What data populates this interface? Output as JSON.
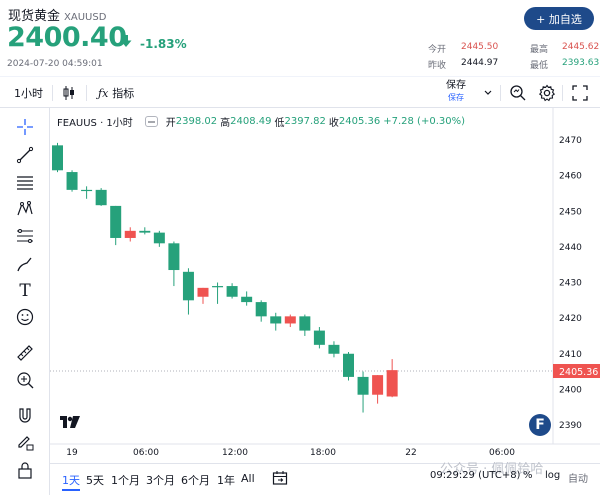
{
  "header": {
    "name": "现货黄金",
    "symbol": "XAUUSD",
    "add_button": "+ 加自选",
    "price": "2400.40",
    "change_pct": "-1.83%",
    "datetime": "2024-07-20 04:59:01",
    "stats": {
      "open_label": "今开",
      "open": "2445.50",
      "high_label": "最高",
      "high": "2445.62",
      "prev_label": "昨收",
      "prev": "2444.97",
      "low_label": "最低",
      "low": "2393.63"
    }
  },
  "toolbar": {
    "interval": "1小时",
    "indicators": "指标",
    "save": "保存",
    "save_sub": "保存"
  },
  "legend": {
    "symbol": "FEAUUS · 1小时",
    "open_k": "开",
    "open_v": "2398.02",
    "high_k": "高",
    "high_v": "2408.49",
    "low_k": "低",
    "low_v": "2397.82",
    "close_k": "收",
    "close_v": "2405.36",
    "chg_v": "+7.28 (+0.30%)"
  },
  "colors": {
    "up": "#ef5350",
    "down": "#26a17b",
    "accent": "#2962ff",
    "brand": "#1e4a8a"
  },
  "bottom": {
    "ranges": [
      "1天",
      "5天",
      "1个月",
      "3个月",
      "6个月",
      "1年",
      "All"
    ],
    "active_range": "1天",
    "timezone": "09:29:29 (UTC+8)",
    "pct": "%",
    "log": "log",
    "auto": "自动"
  },
  "watermark": "公众号 · 佩佩铪哈",
  "chart_data": {
    "type": "candlestick",
    "last_price_label": "2405.36",
    "ylim": [
      2385,
      2475
    ],
    "y_ticks": [
      2390,
      2400,
      2410,
      2420,
      2430,
      2440,
      2450,
      2460,
      2470
    ],
    "x_ticks": [
      "19",
      "06:00",
      "12:00",
      "18:00",
      "22",
      "06:00"
    ],
    "candles": [
      {
        "o": 2468.5,
        "h": 2469.2,
        "l": 2461.0,
        "c": 2461.5
      },
      {
        "o": 2461.0,
        "h": 2461.5,
        "l": 2455.5,
        "c": 2456.0
      },
      {
        "o": 2456.0,
        "h": 2457.0,
        "l": 2453.5,
        "c": 2456.0
      },
      {
        "o": 2456.0,
        "h": 2456.5,
        "l": 2451.5,
        "c": 2451.7
      },
      {
        "o": 2451.5,
        "h": 2451.5,
        "l": 2440.5,
        "c": 2442.5
      },
      {
        "o": 2442.5,
        "h": 2445.5,
        "l": 2441.5,
        "c": 2444.5
      },
      {
        "o": 2444.5,
        "h": 2445.5,
        "l": 2443.5,
        "c": 2444.0
      },
      {
        "o": 2444.0,
        "h": 2444.5,
        "l": 2440.0,
        "c": 2441.0
      },
      {
        "o": 2441.0,
        "h": 2441.5,
        "l": 2429.0,
        "c": 2433.5
      },
      {
        "o": 2433.0,
        "h": 2434.0,
        "l": 2421.0,
        "c": 2425.0
      },
      {
        "o": 2426.0,
        "h": 2428.5,
        "l": 2424.0,
        "c": 2428.5
      },
      {
        "o": 2429.0,
        "h": 2430.0,
        "l": 2424.0,
        "c": 2429.0
      },
      {
        "o": 2429.0,
        "h": 2429.8,
        "l": 2425.5,
        "c": 2426.0
      },
      {
        "o": 2426.0,
        "h": 2427.5,
        "l": 2423.5,
        "c": 2424.5
      },
      {
        "o": 2424.5,
        "h": 2425.0,
        "l": 2419.0,
        "c": 2420.5
      },
      {
        "o": 2420.5,
        "h": 2421.5,
        "l": 2416.5,
        "c": 2418.5
      },
      {
        "o": 2418.5,
        "h": 2421.0,
        "l": 2417.5,
        "c": 2420.5
      },
      {
        "o": 2420.5,
        "h": 2421.0,
        "l": 2415.0,
        "c": 2416.5
      },
      {
        "o": 2416.5,
        "h": 2417.5,
        "l": 2411.5,
        "c": 2412.5
      },
      {
        "o": 2412.5,
        "h": 2413.5,
        "l": 2409.0,
        "c": 2410.0
      },
      {
        "o": 2410.0,
        "h": 2410.5,
        "l": 2402.5,
        "c": 2403.5
      },
      {
        "o": 2403.5,
        "h": 2405.0,
        "l": 2393.5,
        "c": 2398.5
      },
      {
        "o": 2398.5,
        "h": 2404.0,
        "l": 2396.0,
        "c": 2404.0
      },
      {
        "o": 2398.0,
        "h": 2408.5,
        "l": 2397.8,
        "c": 2405.4
      }
    ]
  }
}
